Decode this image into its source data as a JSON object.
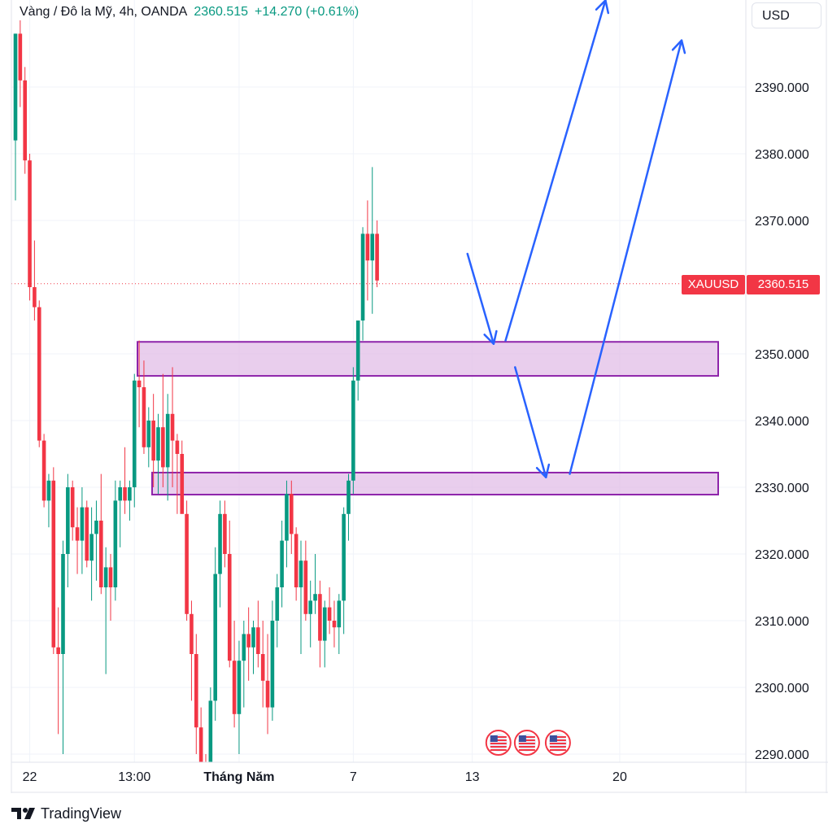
{
  "header": {
    "symbol": "Vàng / Đô la Mỹ, 4h, OANDA",
    "price": "2360.515",
    "change": "+14.270 (+0.61%)"
  },
  "currency": "USD",
  "price_tag": {
    "symbol": "XAUUSD",
    "value": "2360.515"
  },
  "footer": {
    "brand": "TradingView"
  },
  "colors": {
    "up": "#089981",
    "down": "#f23645",
    "zone_border": "#8e24aa",
    "zone_fill": "#e1bee7",
    "arrow": "#2962ff"
  },
  "chart_data": {
    "type": "candlestick",
    "y_tick_labels": [
      "2390.000",
      "2380.000",
      "2370.000",
      "2350.000",
      "2340.000",
      "2330.000",
      "2320.000",
      "2310.000",
      "2300.000",
      "2290.000"
    ],
    "x_tick_labels": [
      "22",
      "13:00",
      "Tháng Năm",
      "7",
      "13",
      "20"
    ],
    "ylim": [
      2289,
      2402
    ],
    "grid": true,
    "last_price": 2360.515,
    "zones": [
      {
        "low": 2346.7,
        "high": 2351.8
      },
      {
        "low": 2328.9,
        "high": 2332.2
      }
    ],
    "projection_arrows": [
      {
        "from": [
          95,
          2365
        ],
        "to": [
          100.5,
          2351.5
        ]
      },
      {
        "from": [
          103,
          2352
        ],
        "to": [
          124,
          2403
        ]
      },
      {
        "from": [
          105,
          2348
        ],
        "to": [
          111.5,
          2331.5
        ]
      },
      {
        "from": [
          116.5,
          2332
        ],
        "to": [
          140,
          2397
        ]
      }
    ],
    "event_markers": [
      {
        "x": 101.5,
        "flag": "us-flag-icon"
      },
      {
        "x": 107.5,
        "flag": "us-flag-icon"
      },
      {
        "x": 114,
        "flag": "us-flag-icon"
      }
    ],
    "candles": [
      [
        2382,
        2398,
        2373,
        2398
      ],
      [
        2398,
        2400,
        2387,
        2391
      ],
      [
        2391,
        2393,
        2377,
        2379
      ],
      [
        2379,
        2380,
        2358,
        2360
      ],
      [
        2360,
        2367,
        2355,
        2357
      ],
      [
        2357,
        2358,
        2336,
        2337
      ],
      [
        2337,
        2338,
        2327,
        2328
      ],
      [
        2328,
        2332,
        2324,
        2331
      ],
      [
        2331,
        2333,
        2305,
        2306
      ],
      [
        2306,
        2312,
        2293,
        2305
      ],
      [
        2305,
        2322,
        2290,
        2320
      ],
      [
        2320,
        2332,
        2315,
        2330
      ],
      [
        2330,
        2331,
        2322,
        2324
      ],
      [
        2324,
        2327,
        2317,
        2322
      ],
      [
        2322,
        2330,
        2317,
        2327
      ],
      [
        2327,
        2328,
        2318,
        2319
      ],
      [
        2319,
        2327,
        2313,
        2323
      ],
      [
        2323,
        2328,
        2316,
        2325
      ],
      [
        2325,
        2332,
        2314,
        2315
      ],
      [
        2315,
        2321,
        2302,
        2318
      ],
      [
        2318,
        2320,
        2310,
        2315
      ],
      [
        2315,
        2331,
        2313,
        2328
      ],
      [
        2328,
        2331,
        2321,
        2330
      ],
      [
        2330,
        2336,
        2326,
        2328
      ],
      [
        2328,
        2331,
        2325,
        2330
      ],
      [
        2330,
        2347,
        2327,
        2346
      ],
      [
        2346,
        2352,
        2339,
        2345
      ],
      [
        2345,
        2349,
        2335,
        2336
      ],
      [
        2336,
        2342,
        2333,
        2340
      ],
      [
        2340,
        2344,
        2330,
        2334
      ],
      [
        2334,
        2341,
        2329,
        2339
      ],
      [
        2339,
        2347,
        2330,
        2333
      ],
      [
        2333,
        2344,
        2328,
        2341
      ],
      [
        2341,
        2348,
        2330,
        2337
      ],
      [
        2337,
        2338,
        2326,
        2335
      ],
      [
        2335,
        2337,
        2327,
        2326
      ],
      [
        2326,
        2328,
        2310,
        2311
      ],
      [
        2311,
        2313,
        2298,
        2305
      ],
      [
        2305,
        2308,
        2290,
        2294
      ],
      [
        2294,
        2297,
        2285,
        2287
      ],
      [
        2287,
        2290,
        2280,
        2283
      ],
      [
        2283,
        2300,
        2280,
        2298
      ],
      [
        2298,
        2321,
        2295,
        2317
      ],
      [
        2317,
        2328,
        2312,
        2326
      ],
      [
        2326,
        2328,
        2318,
        2320
      ],
      [
        2320,
        2325,
        2303,
        2304
      ],
      [
        2304,
        2310,
        2294,
        2296
      ],
      [
        2296,
        2307,
        2290,
        2304
      ],
      [
        2304,
        2310,
        2297,
        2308
      ],
      [
        2308,
        2312,
        2301,
        2306
      ],
      [
        2306,
        2310,
        2302,
        2309
      ],
      [
        2309,
        2313,
        2303,
        2305
      ],
      [
        2305,
        2310,
        2297,
        2301
      ],
      [
        2301,
        2308,
        2293,
        2297
      ],
      [
        2297,
        2313,
        2295,
        2310
      ],
      [
        2310,
        2317,
        2306,
        2315
      ],
      [
        2315,
        2325,
        2312,
        2322
      ],
      [
        2322,
        2331,
        2318,
        2329
      ],
      [
        2329,
        2331,
        2320,
        2323
      ],
      [
        2323,
        2324,
        2313,
        2315
      ],
      [
        2315,
        2322,
        2305,
        2319
      ],
      [
        2319,
        2322,
        2310,
        2311
      ],
      [
        2311,
        2316,
        2306,
        2313
      ],
      [
        2313,
        2320,
        2311,
        2314
      ],
      [
        2314,
        2316,
        2303,
        2307
      ],
      [
        2307,
        2313,
        2303,
        2312
      ],
      [
        2312,
        2315,
        2308,
        2310
      ],
      [
        2310,
        2313,
        2306,
        2309
      ],
      [
        2309,
        2314,
        2305,
        2313
      ],
      [
        2313,
        2327,
        2308,
        2326
      ],
      [
        2326,
        2332,
        2322,
        2331
      ],
      [
        2331,
        2348,
        2329,
        2346
      ],
      [
        2346,
        2355,
        2343,
        2355
      ],
      [
        2355,
        2369,
        2352,
        2368
      ],
      [
        2368,
        2373,
        2358,
        2364
      ],
      [
        2364,
        2378,
        2356,
        2368
      ],
      [
        2368,
        2370,
        2360,
        2361
      ]
    ]
  }
}
